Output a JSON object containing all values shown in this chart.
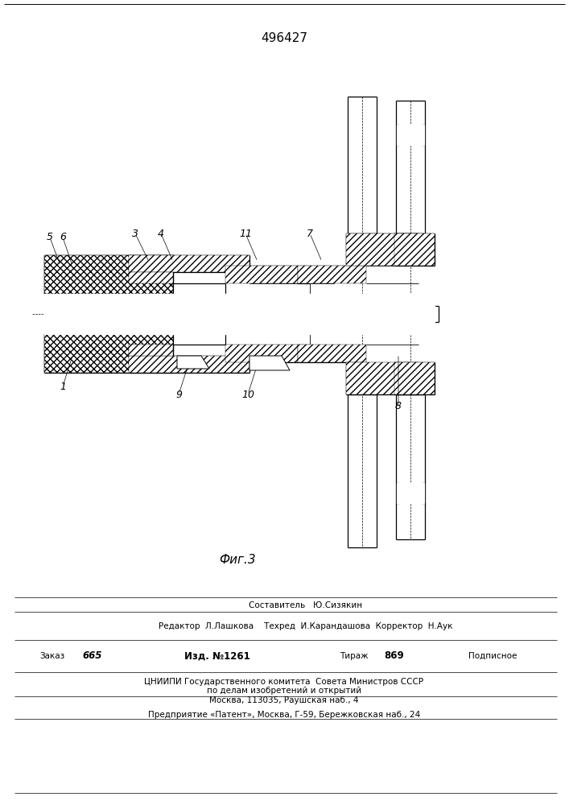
{
  "title": "496427",
  "fig_label": "Фиг.3",
  "footer": {
    "sostavitel": "Составитель   Ю.Сизякин",
    "redaktor": "Редактор  Л.Лашкова    Техред  И.Карандашова  Корректор  Н.Аук",
    "zakaz": "Заказ",
    "zakaz_num": "665",
    "izd": "Изд. №1261",
    "tirazh": "Тираж",
    "tirazh_num": "869",
    "podpisnoe": "Подписное",
    "tsniipi1": "ЦНИИПИ Государственного комитета  Совета Министров СССР",
    "tsniipi2": "по делам изобретений и открытий",
    "tsniipi3": "Москва, 113035, Раушская наб., 4",
    "patent": "Предприятие «Патент», Москва, Г-59, Бережковская наб., 24"
  }
}
